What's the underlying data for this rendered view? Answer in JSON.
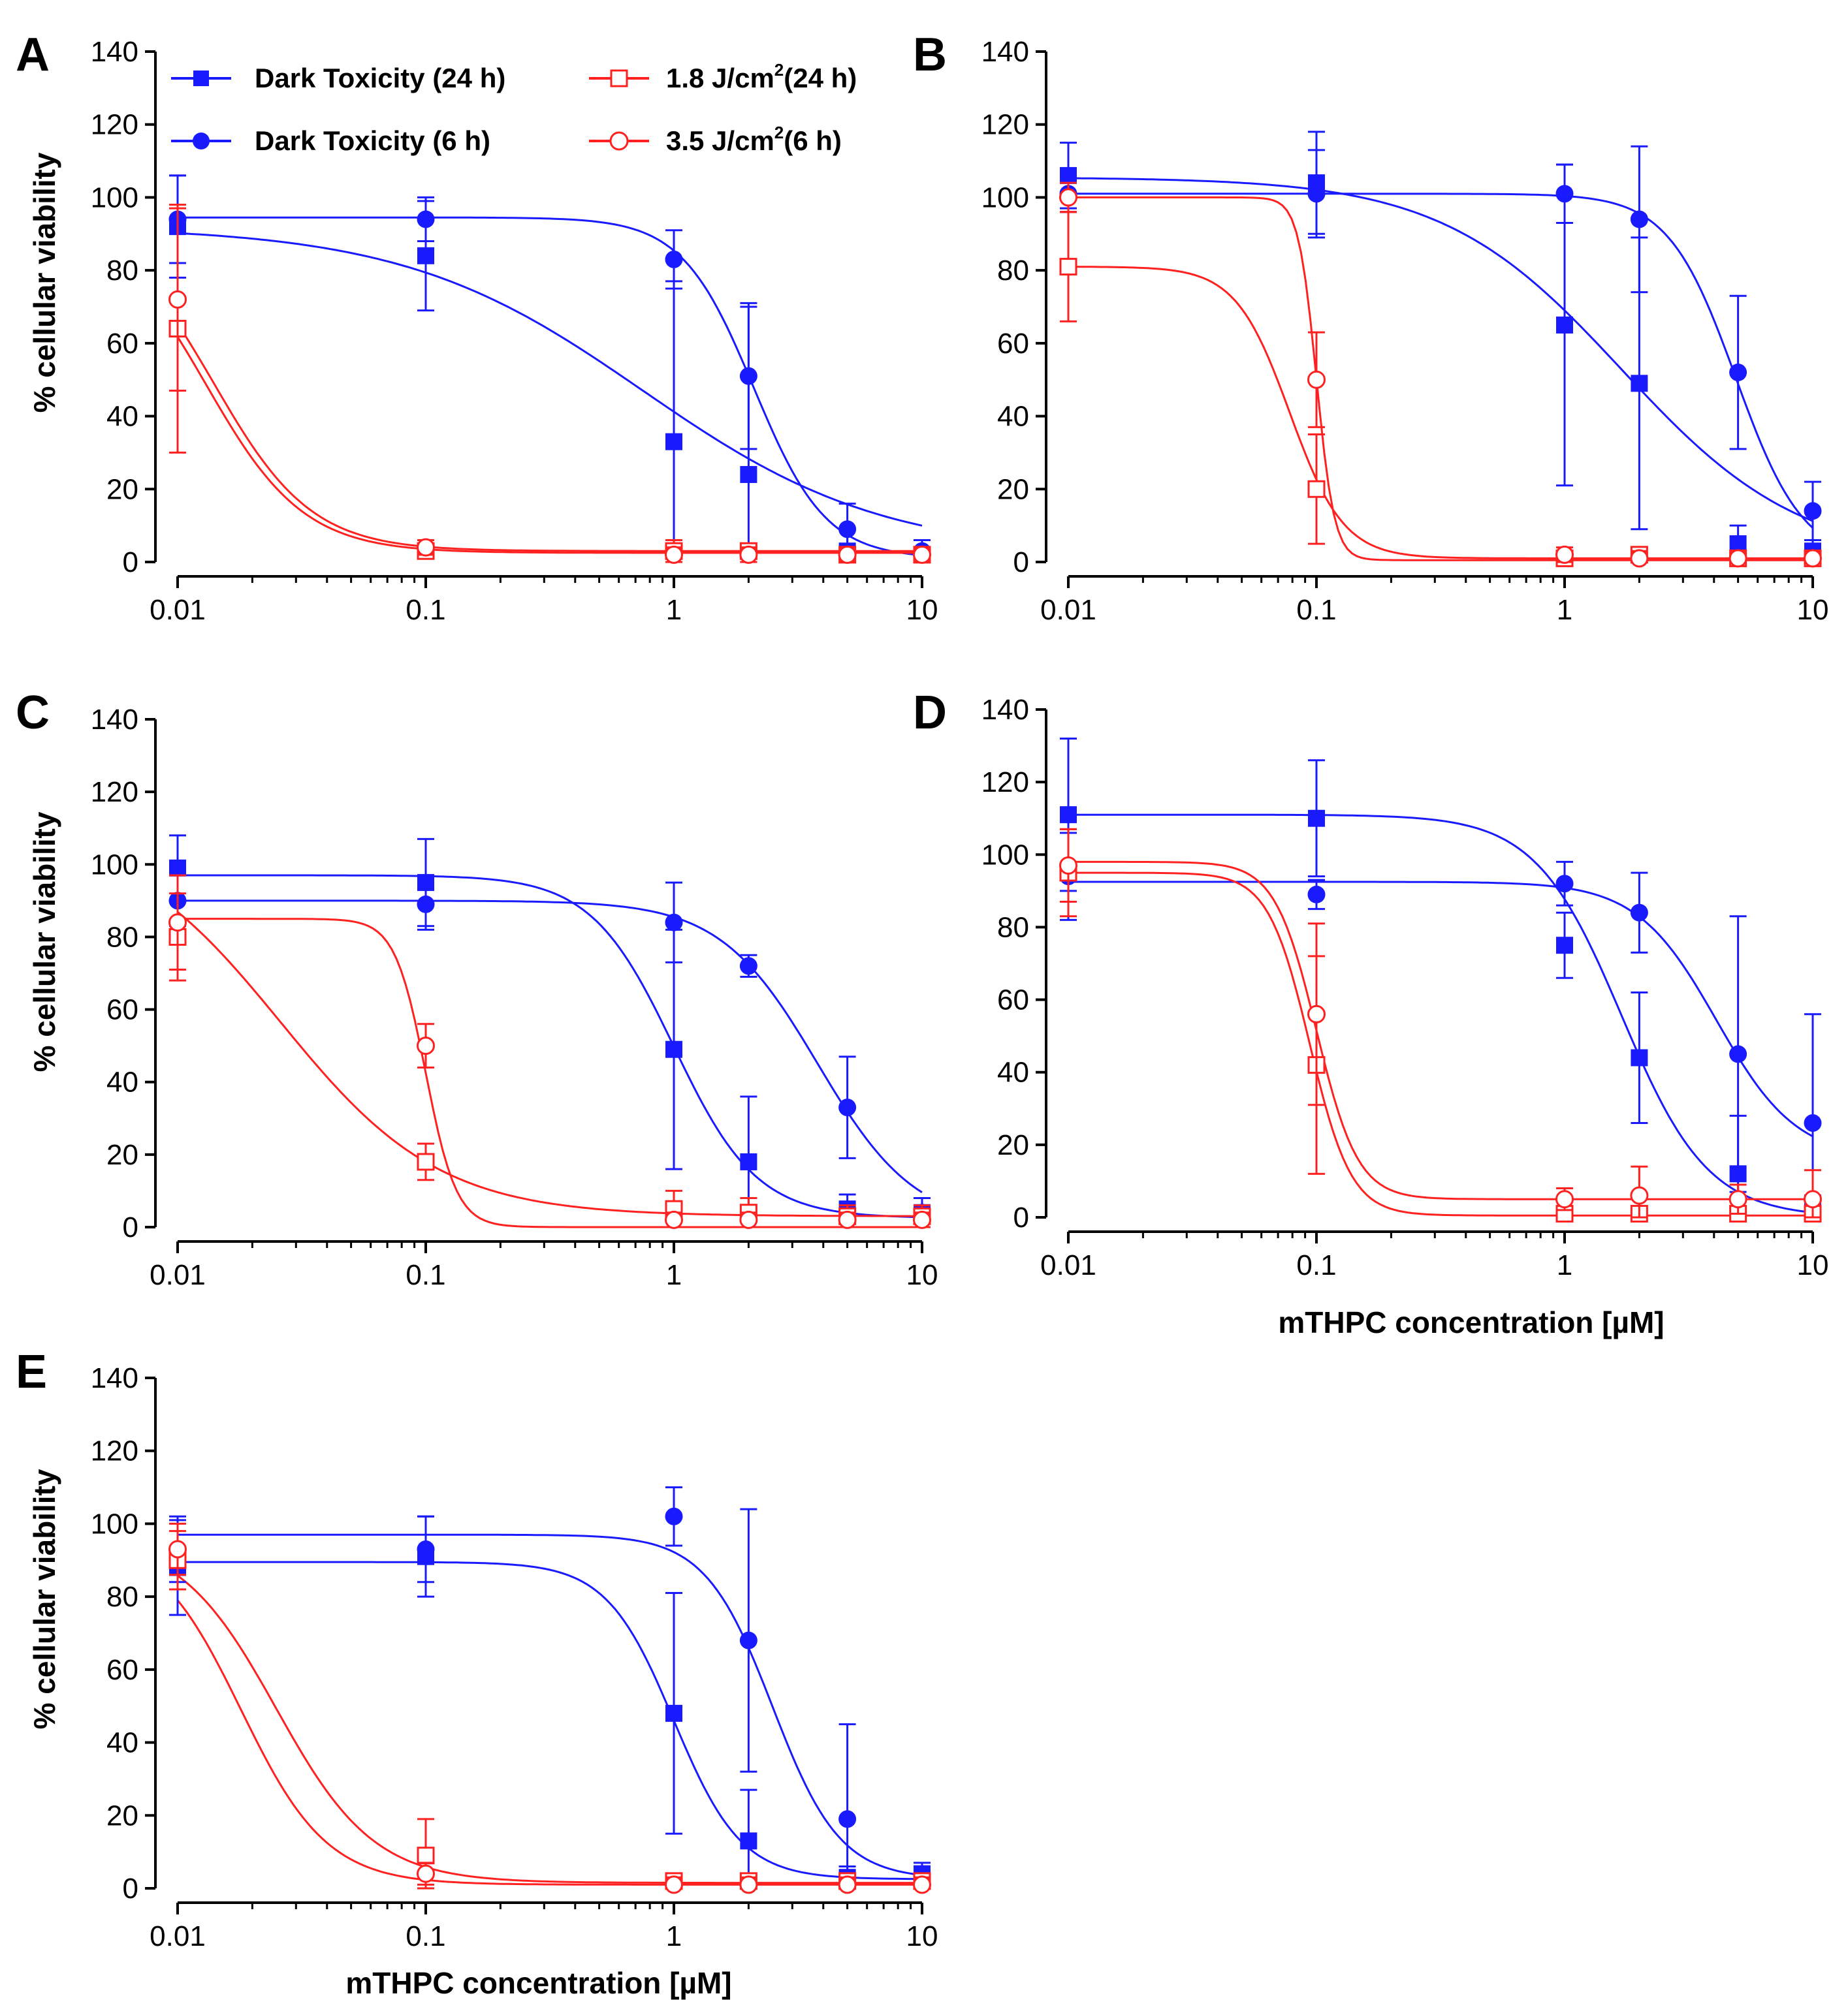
{
  "figure": {
    "x_axis_title": "mTHPC concentration [µM]",
    "y_axis_title": "% cellular viability"
  },
  "legend": [
    {
      "label": "Dark Toxicity (24 h)",
      "color": "#1a1aff",
      "marker": "filled-square"
    },
    {
      "label": "Dark Toxicity (6 h)",
      "color": "#1a1aff",
      "marker": "filled-circle"
    },
    {
      "label_main": "1.8 J/cm",
      "label_sup": "2",
      "label_tail": "(24 h)",
      "color": "#ff2020",
      "marker": "open-square"
    },
    {
      "label_main": "3.5 J/cm",
      "label_sup": "2",
      "label_tail": "(6 h)",
      "color": "#ff2020",
      "marker": "open-circle"
    }
  ],
  "chart_data": [
    {
      "panel": "A",
      "type": "scatter",
      "x": [
        0.01,
        0.1,
        1,
        2,
        5,
        10
      ],
      "xscale": "log",
      "xlim": [
        0.01,
        10
      ],
      "xtick_labels": [
        "0.01",
        "0.1",
        "1",
        "10"
      ],
      "ylim": [
        0,
        140
      ],
      "yticks": [
        0,
        20,
        40,
        60,
        80,
        100,
        120,
        140
      ],
      "series": [
        {
          "name": "Dark Toxicity (24 h)",
          "marker": "filled-square",
          "color": "#1a1aff",
          "values": [
            92,
            84,
            33,
            24,
            3,
            2
          ],
          "errors": [
            14,
            15,
            44,
            46,
            6,
            4
          ],
          "fit": {
            "top": 92,
            "bottom": 2,
            "ec50": 0.75,
            "hill": 0.9
          }
        },
        {
          "name": "Dark Toxicity (6 h)",
          "marker": "filled-circle",
          "color": "#1a1aff",
          "values": [
            94,
            94,
            83,
            51,
            9,
            3
          ],
          "errors": [
            12,
            6,
            8,
            20,
            7,
            3
          ],
          "fit": {
            "top": 94.5,
            "bottom": 1,
            "ec50": 2.1,
            "hill": 3
          }
        },
        {
          "name": "1.8 J/cm2 (24 h)",
          "marker": "open-square",
          "color": "#ff2020",
          "values": [
            64,
            3,
            3,
            3,
            2,
            2
          ],
          "errors": [
            34,
            2,
            3,
            2,
            2,
            2
          ],
          "fit": {
            "top": 95,
            "bottom": 2.5,
            "ec50": 0.013,
            "hill": 2.2
          }
        },
        {
          "name": "3.5 J/cm2 (6 h)",
          "marker": "open-circle",
          "color": "#ff2020",
          "values": [
            72,
            4,
            2,
            2,
            2,
            2
          ],
          "errors": [
            25,
            2,
            2,
            2,
            2,
            2
          ],
          "fit": {
            "top": 95,
            "bottom": 3,
            "ec50": 0.014,
            "hill": 2.2
          }
        }
      ]
    },
    {
      "panel": "B",
      "type": "scatter",
      "x": [
        0.01,
        0.1,
        1,
        2,
        5,
        10
      ],
      "xscale": "log",
      "xlim": [
        0.01,
        10
      ],
      "xtick_labels": [
        "0.01",
        "0.1",
        "1",
        "10"
      ],
      "ylim": [
        0,
        140
      ],
      "yticks": [
        0,
        20,
        40,
        60,
        80,
        100,
        120,
        140
      ],
      "series": [
        {
          "name": "Dark Toxicity (24 h)",
          "marker": "filled-square",
          "color": "#1a1aff",
          "values": [
            106,
            104,
            65,
            49,
            5,
            3
          ],
          "errors": [
            9,
            14,
            44,
            40,
            5,
            3
          ],
          "fit": {
            "top": 105.5,
            "bottom": 0,
            "ec50": 1.7,
            "hill": 1.2
          }
        },
        {
          "name": "Dark Toxicity (6 h)",
          "marker": "filled-circle",
          "color": "#1a1aff",
          "values": [
            101,
            101,
            101,
            94,
            52,
            14
          ],
          "errors": [
            5,
            12,
            8,
            20,
            21,
            8
          ],
          "fit": {
            "top": 101,
            "bottom": 0,
            "ec50": 4.9,
            "hill": 3.2
          }
        },
        {
          "name": "1.8 J/cm2 (24 h)",
          "marker": "open-square",
          "color": "#ff2020",
          "values": [
            81,
            20,
            1,
            2,
            1,
            1
          ],
          "errors": [
            15,
            15,
            2,
            2,
            2,
            2
          ],
          "fit": {
            "top": 81,
            "bottom": 1,
            "ec50": 0.078,
            "hill": 4
          }
        },
        {
          "name": "3.5 J/cm2 (6 h)",
          "marker": "open-circle",
          "color": "#ff2020",
          "values": [
            100,
            50,
            2,
            1,
            1,
            1
          ],
          "errors": [
            4,
            13,
            2,
            2,
            2,
            2
          ],
          "fit": {
            "top": 100,
            "bottom": 0.5,
            "ec50": 0.1,
            "hill": 12
          }
        }
      ]
    },
    {
      "panel": "C",
      "type": "scatter",
      "x": [
        0.01,
        0.1,
        1,
        2,
        5,
        10
      ],
      "xscale": "log",
      "xlim": [
        0.01,
        10
      ],
      "xtick_labels": [
        "0.01",
        "0.1",
        "1",
        "10"
      ],
      "ylim": [
        0,
        140
      ],
      "yticks": [
        0,
        20,
        40,
        60,
        80,
        100,
        120,
        140
      ],
      "series": [
        {
          "name": "Dark Toxicity (24 h)",
          "marker": "filled-square",
          "color": "#1a1aff",
          "values": [
            99,
            95,
            49,
            18,
            5,
            4
          ],
          "errors": [
            9,
            12,
            33,
            18,
            4,
            4
          ],
          "fit": {
            "top": 97,
            "bottom": 2.5,
            "ec50": 1,
            "hill": 2.6
          }
        },
        {
          "name": "Dark Toxicity (6 h)",
          "marker": "filled-circle",
          "color": "#1a1aff",
          "values": [
            90,
            89,
            84,
            72,
            33,
            4
          ],
          "errors": [
            7,
            7,
            11,
            3,
            14,
            4
          ],
          "fit": {
            "top": 90,
            "bottom": 0,
            "ec50": 3.8,
            "hill": 2.2
          }
        },
        {
          "name": "1.8 J/cm2 (24 h)",
          "marker": "open-square",
          "color": "#ff2020",
          "values": [
            80,
            18,
            5,
            4,
            3,
            3
          ],
          "errors": [
            12,
            5,
            5,
            4,
            3,
            3
          ],
          "fit": {
            "top": 110,
            "bottom": 3,
            "ec50": 0.026,
            "hill": 1.35
          }
        },
        {
          "name": "3.5 J/cm2 (6 h)",
          "marker": "open-circle",
          "color": "#ff2020",
          "values": [
            84,
            50,
            2,
            2,
            2,
            2
          ],
          "errors": [
            13,
            6,
            2,
            2,
            2,
            2
          ],
          "fit": {
            "top": 85,
            "bottom": 0,
            "ec50": 0.1,
            "hill": 7
          }
        }
      ]
    },
    {
      "panel": "D",
      "type": "scatter",
      "x": [
        0.01,
        0.1,
        1,
        2,
        5,
        10
      ],
      "xscale": "log",
      "xlim": [
        0.01,
        10
      ],
      "xtick_labels": [
        "0.01",
        "0.1",
        "1",
        "10"
      ],
      "ylim": [
        0,
        140
      ],
      "yticks": [
        0,
        20,
        40,
        60,
        80,
        100,
        120,
        140
      ],
      "series": [
        {
          "name": "Dark Toxicity (24 h)",
          "marker": "filled-square",
          "color": "#1a1aff",
          "values": [
            111,
            110,
            75,
            44,
            12,
            3
          ],
          "errors": [
            21,
            16,
            9,
            18,
            16,
            3
          ],
          "fit": {
            "top": 111,
            "bottom": 0,
            "ec50": 1.7,
            "hill": 2.5
          }
        },
        {
          "name": "Dark Toxicity (6 h)",
          "marker": "filled-circle",
          "color": "#1a1aff",
          "values": [
            94,
            89,
            92,
            84,
            45,
            26
          ],
          "errors": [
            12,
            4,
            6,
            11,
            38,
            30
          ],
          "fit": {
            "top": 92.5,
            "bottom": 16,
            "ec50": 4.1,
            "hill": 2.7
          }
        },
        {
          "name": "1.8 J/cm2 (24 h)",
          "marker": "open-square",
          "color": "#ff2020",
          "values": [
            95,
            42,
            1,
            1,
            1,
            1
          ],
          "errors": [
            12,
            30,
            2,
            2,
            2,
            2
          ],
          "fit": {
            "top": 95,
            "bottom": 0.5,
            "ec50": 0.094,
            "hill": 5.2
          }
        },
        {
          "name": "3.5 J/cm2 (6 h)",
          "marker": "open-circle",
          "color": "#ff2020",
          "values": [
            97,
            56,
            5,
            6,
            5,
            5
          ],
          "errors": [
            10,
            25,
            3,
            8,
            4,
            8
          ],
          "fit": {
            "top": 98,
            "bottom": 5,
            "ec50": 0.1,
            "hill": 5.2
          }
        }
      ]
    },
    {
      "panel": "E",
      "type": "scatter",
      "x": [
        0.01,
        0.1,
        1,
        2,
        5,
        10
      ],
      "xscale": "log",
      "xlim": [
        0.01,
        10
      ],
      "xtick_labels": [
        "0.01",
        "0.1",
        "1",
        "10"
      ],
      "ylim": [
        0,
        140
      ],
      "yticks": [
        0,
        20,
        40,
        60,
        80,
        100,
        120,
        140
      ],
      "series": [
        {
          "name": "Dark Toxicity (24 h)",
          "marker": "filled-square",
          "color": "#1a1aff",
          "values": [
            88,
            91,
            48,
            13,
            3,
            4
          ],
          "errors": [
            13,
            11,
            33,
            14,
            3,
            3
          ],
          "fit": {
            "top": 89.5,
            "bottom": 2.5,
            "ec50": 1,
            "hill": 3.2
          }
        },
        {
          "name": "Dark Toxicity (6 h)",
          "marker": "filled-circle",
          "color": "#1a1aff",
          "values": [
            93,
            93,
            102,
            68,
            19,
            3
          ],
          "errors": [
            9,
            9,
            8,
            36,
            26,
            3
          ],
          "fit": {
            "top": 97,
            "bottom": 2.5,
            "ec50": 2.5,
            "hill": 3.2
          }
        },
        {
          "name": "1.8 J/cm2 (24 h)",
          "marker": "open-square",
          "color": "#ff2020",
          "values": [
            90,
            9,
            2,
            2,
            2,
            2
          ],
          "errors": [
            8,
            10,
            2,
            2,
            2,
            2
          ],
          "fit": {
            "top": 97,
            "bottom": 1.5,
            "ec50": 0.025,
            "hill": 2.2
          }
        },
        {
          "name": "3.5 J/cm2 (6 h)",
          "marker": "open-circle",
          "color": "#ff2020",
          "values": [
            93,
            4,
            1,
            1,
            1,
            1
          ],
          "errors": [
            7,
            3,
            2,
            2,
            2,
            2
          ],
          "fit": {
            "top": 97,
            "bottom": 1,
            "ec50": 0.018,
            "hill": 2.5
          }
        }
      ]
    }
  ]
}
